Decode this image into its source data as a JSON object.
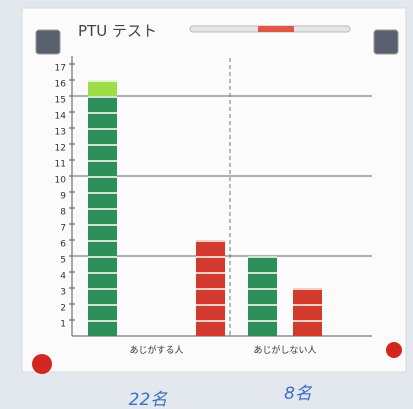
{
  "chart_data": {
    "type": "bar",
    "title": "PTU テスト",
    "categories": [
      "あじがする人",
      "あじがしない人"
    ],
    "series": [
      {
        "color": "#2f8f5b",
        "values": [
          15,
          5
        ],
        "stack": "a"
      },
      {
        "color": "#9fdc4a",
        "values": [
          1,
          0
        ],
        "stack": "a"
      },
      {
        "color": "#d33a2e",
        "values": [
          6,
          3
        ],
        "stack": "b"
      }
    ],
    "ylim": [
      0,
      17.5
    ],
    "yticks": [
      1,
      2,
      3,
      4,
      5,
      6,
      7,
      8,
      9,
      10,
      11,
      12,
      13,
      14,
      15,
      16,
      17
    ],
    "grid_step": 5,
    "annotations": [
      "22名",
      "8名"
    ]
  }
}
